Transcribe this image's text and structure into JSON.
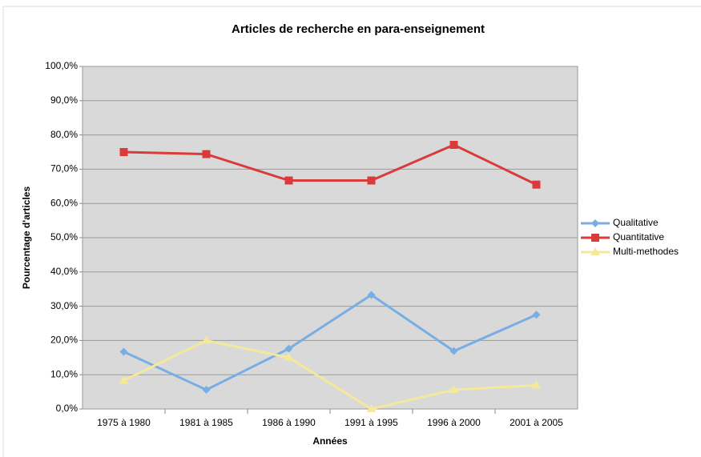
{
  "chart_data": {
    "type": "line",
    "title": "Articles de recherche en para-enseignement",
    "x_label": "Années",
    "y_label": "Pourcentage d'articles",
    "categories": [
      "1975 à 1980",
      "1981 à 1985",
      "1986 à 1990",
      "1991 à 1995",
      "1996 à 2000",
      "2001 à 2005"
    ],
    "series": [
      {
        "name": "Qualitative",
        "color": "#78aee4",
        "marker": "diamond",
        "values": [
          16.7,
          5.6,
          17.6,
          33.3,
          16.9,
          27.5
        ]
      },
      {
        "name": "Quantitative",
        "color": "#d93b3b",
        "marker": "square",
        "values": [
          75.0,
          74.4,
          66.7,
          66.7,
          77.1,
          65.5
        ]
      },
      {
        "name": "Multi-methodes",
        "color": "#f3e89c",
        "marker": "triangle",
        "values": [
          8.3,
          20.0,
          15.0,
          0.0,
          5.6,
          6.9
        ]
      }
    ],
    "ylim": [
      0,
      100
    ],
    "yticks": [
      {
        "value": 0,
        "label": "0,0%"
      },
      {
        "value": 10,
        "label": "10,0%"
      },
      {
        "value": 20,
        "label": "20,0%"
      },
      {
        "value": 30,
        "label": "30,0%"
      },
      {
        "value": 40,
        "label": "40,0%"
      },
      {
        "value": 50,
        "label": "50,0%"
      },
      {
        "value": 60,
        "label": "60,0%"
      },
      {
        "value": 70,
        "label": "70,0%"
      },
      {
        "value": 80,
        "label": "80,0%"
      },
      {
        "value": 90,
        "label": "90,0%"
      },
      {
        "value": 100,
        "label": "100,0%"
      }
    ],
    "grid": true,
    "legend": "right"
  }
}
